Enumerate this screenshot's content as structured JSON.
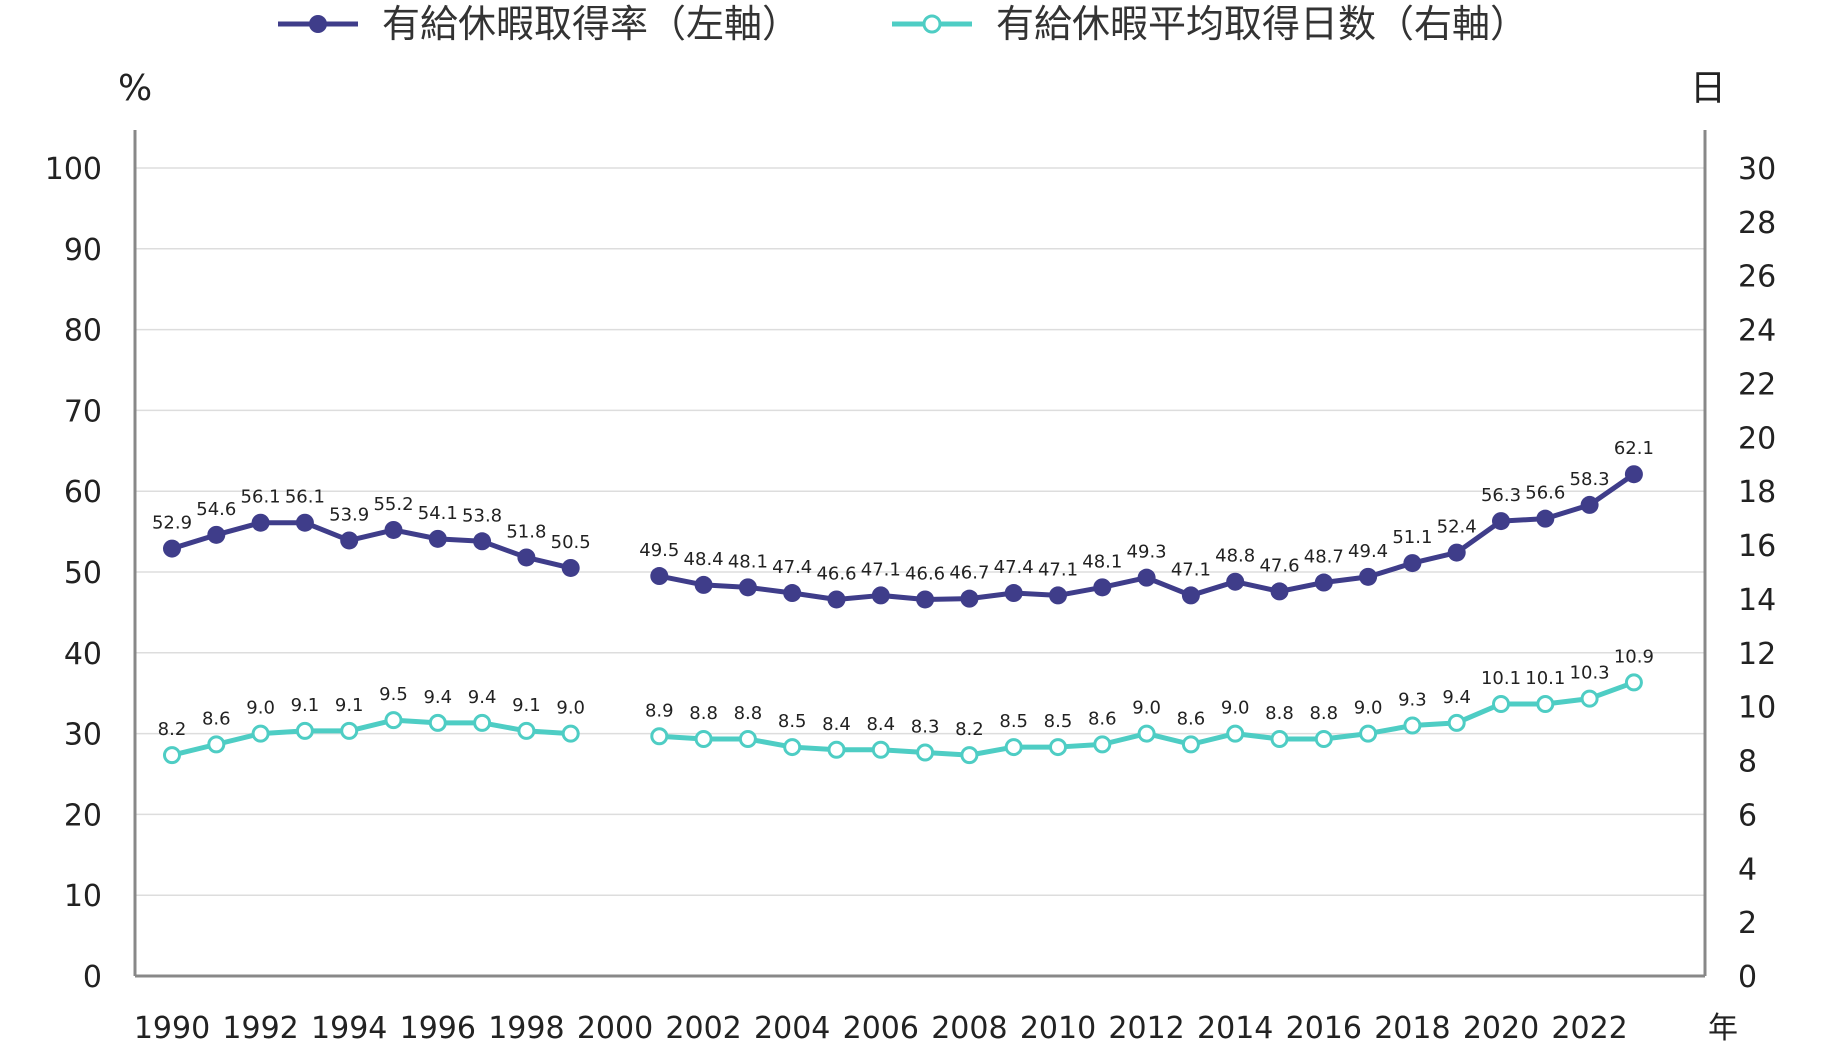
{
  "legend": {
    "series1_label": "有給休暇取得率（左軸）",
    "series2_label": "有給休暇平均取得日数（右軸）"
  },
  "axes": {
    "left_unit": "%",
    "right_unit": "日",
    "x_unit": "年"
  },
  "colors": {
    "series1": "#3f3d8a",
    "series2": "#4ecdc4",
    "axis": "#888888",
    "grid": "#dddddd"
  },
  "chart_data": {
    "type": "line",
    "x": [
      1990,
      1991,
      1992,
      1993,
      1994,
      1995,
      1996,
      1997,
      1998,
      1999,
      2000,
      2001,
      2002,
      2003,
      2004,
      2005,
      2006,
      2007,
      2008,
      2009,
      2010,
      2011,
      2012,
      2013,
      2014,
      2015,
      2016,
      2017,
      2018,
      2019,
      2020,
      2021,
      2022,
      2023
    ],
    "x_tick_labels": [
      "1990",
      "1992",
      "1994",
      "1996",
      "1998",
      "2000",
      "2002",
      "2004",
      "2006",
      "2008",
      "2010",
      "2012",
      "2014",
      "2016",
      "2018",
      "2020",
      "2022"
    ],
    "x_tick_values": [
      1990,
      1992,
      1994,
      1996,
      1998,
      2000,
      2002,
      2004,
      2006,
      2008,
      2010,
      2012,
      2014,
      2016,
      2018,
      2020,
      2022
    ],
    "y_left": {
      "range": [
        0,
        100
      ],
      "ticks": [
        "0",
        "10",
        "20",
        "30",
        "40",
        "50",
        "60",
        "70",
        "80",
        "90",
        "100"
      ]
    },
    "y_right": {
      "range": [
        0,
        30
      ],
      "ticks": [
        "0",
        "2",
        "4",
        "6",
        "8",
        "10",
        "12",
        "14",
        "16",
        "18",
        "20",
        "22",
        "24",
        "26",
        "28",
        "30"
      ]
    },
    "grid": true,
    "legend_position": "top",
    "series": [
      {
        "name": "有給休暇取得率（左軸）",
        "axis": "left",
        "marker": "filled-circle",
        "values": [
          52.9,
          54.6,
          56.1,
          56.1,
          53.9,
          55.2,
          54.1,
          53.8,
          51.8,
          50.5,
          null,
          49.5,
          48.4,
          48.1,
          47.4,
          46.6,
          47.1,
          46.6,
          46.7,
          47.4,
          47.1,
          48.1,
          49.3,
          47.1,
          48.8,
          47.6,
          48.7,
          49.4,
          51.1,
          52.4,
          56.3,
          56.6,
          58.3,
          62.1
        ],
        "labels": [
          "52.9",
          "54.6",
          "56.1",
          "56.1",
          "53.9",
          "55.2",
          "54.1",
          "53.8",
          "51.8",
          "50.5",
          "",
          "49.5",
          "48.4",
          "48.1",
          "47.4",
          "46.6",
          "47.1",
          "46.6",
          "46.7",
          "47.4",
          "47.1",
          "48.1",
          "49.3",
          "47.1",
          "48.8",
          "47.6",
          "48.7",
          "49.4",
          "51.1",
          "52.4",
          "56.3",
          "56.6",
          "58.3",
          "62.1"
        ]
      },
      {
        "name": "有給休暇平均取得日数（右軸）",
        "axis": "right",
        "marker": "hollow-circle",
        "values": [
          8.2,
          8.6,
          9.0,
          9.1,
          9.1,
          9.5,
          9.4,
          9.4,
          9.1,
          9.0,
          null,
          8.9,
          8.8,
          8.8,
          8.5,
          8.4,
          8.4,
          8.3,
          8.2,
          8.5,
          8.5,
          8.6,
          9.0,
          8.6,
          9.0,
          8.8,
          8.8,
          9.0,
          9.3,
          9.4,
          10.1,
          10.1,
          10.3,
          10.9
        ],
        "labels": [
          "8.2",
          "8.6",
          "9.0",
          "9.1",
          "9.1",
          "9.5",
          "9.4",
          "9.4",
          "9.1",
          "9.0",
          "",
          "8.9",
          "8.8",
          "8.8",
          "8.5",
          "8.4",
          "8.4",
          "8.3",
          "8.2",
          "8.5",
          "8.5",
          "8.6",
          "9.0",
          "8.6",
          "9.0",
          "8.8",
          "8.8",
          "9.0",
          "9.3",
          "9.4",
          "10.1",
          "10.1",
          "10.3",
          "10.9"
        ]
      }
    ]
  }
}
